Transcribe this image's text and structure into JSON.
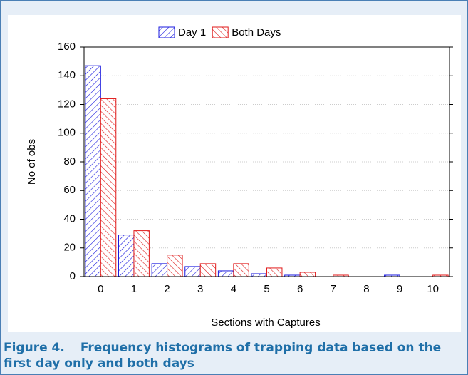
{
  "chart_data": {
    "type": "bar",
    "x_label": "Sections with Captures",
    "y_label": "No of obs",
    "categories": [
      "0",
      "1",
      "2",
      "3",
      "4",
      "5",
      "6",
      "7",
      "8",
      "9",
      "10"
    ],
    "series": [
      {
        "name": "Day 1",
        "color": "#1a1adf",
        "values": [
          147,
          29,
          9,
          7,
          4,
          2,
          1,
          0,
          0,
          1,
          0
        ]
      },
      {
        "name": "Both Days",
        "color": "#e01a1a",
        "values": [
          124,
          32,
          15,
          9,
          9,
          6,
          3,
          1,
          0,
          0,
          1
        ]
      }
    ],
    "ylim": [
      0,
      160
    ],
    "yticks": [
      0,
      20,
      40,
      60,
      80,
      100,
      120,
      140,
      160
    ],
    "grid": true
  },
  "caption": {
    "label": "Figure 4.",
    "text": "Frequency histograms of trapping data based on the first day only and both days"
  }
}
